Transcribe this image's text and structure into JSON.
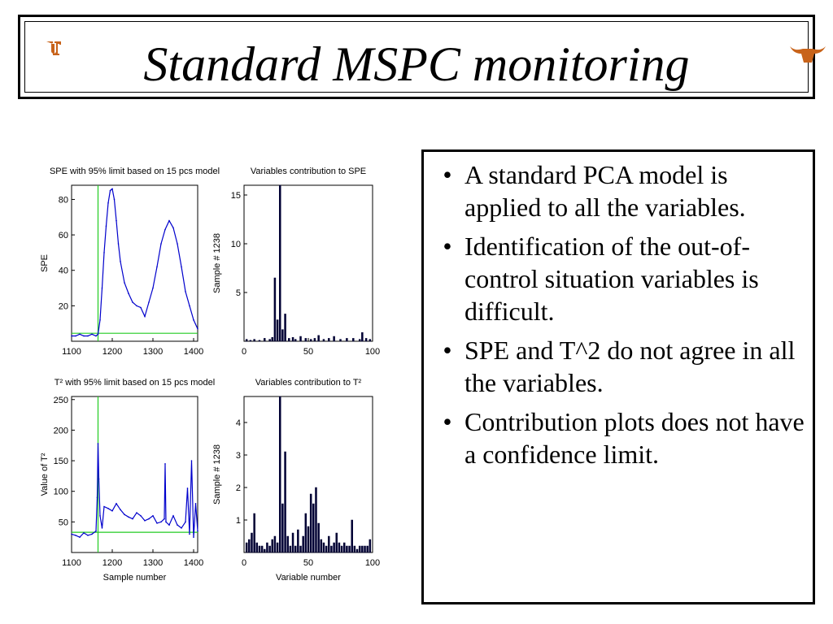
{
  "slide": {
    "title": "Standard MSPC monitoring",
    "bullets": [
      "A standard PCA model is applied to all the variables.",
      "Identification of the out-of-control situation variables is difficult.",
      "SPE and T^2 do not agree in all the variables.",
      "Contribution plots does not have a confidence limit."
    ],
    "bullet_glyph": "•",
    "logos": [
      "ut-logo-icon",
      "longhorn-icon"
    ]
  },
  "colors": {
    "line": "#0000cc",
    "limit": "#22cc22",
    "bar": "#000033",
    "text": "#000000"
  },
  "chart_data": [
    {
      "type": "line",
      "title": "SPE with 95% limit based on 15 pcs model",
      "xlabel": "",
      "ylabel": "SPE",
      "xlim": [
        1100,
        1410
      ],
      "ylim": [
        0,
        88
      ],
      "xticks": [
        1100,
        1200,
        1300,
        1400
      ],
      "yticks": [
        20,
        40,
        60,
        80
      ],
      "limit_y": 4.5,
      "event_x": 1165,
      "x": [
        1100,
        1110,
        1120,
        1130,
        1140,
        1150,
        1160,
        1165,
        1170,
        1175,
        1180,
        1185,
        1190,
        1195,
        1200,
        1205,
        1210,
        1215,
        1220,
        1230,
        1240,
        1250,
        1260,
        1270,
        1280,
        1290,
        1300,
        1310,
        1320,
        1330,
        1340,
        1350,
        1360,
        1370,
        1380,
        1390,
        1400,
        1410
      ],
      "y": [
        3,
        3,
        4,
        3,
        3,
        4,
        3,
        4,
        12,
        30,
        50,
        65,
        78,
        85,
        86,
        80,
        68,
        55,
        45,
        33,
        27,
        22,
        20,
        19,
        14,
        22,
        30,
        42,
        55,
        63,
        68,
        64,
        55,
        42,
        28,
        20,
        12,
        7
      ],
      "grid": false
    },
    {
      "type": "bar",
      "title": "Variables contribution to SPE",
      "xlabel": "",
      "ylabel": "Sample # 1238",
      "xlim": [
        0,
        100
      ],
      "ylim": [
        0,
        16
      ],
      "xticks": [
        0,
        50,
        100
      ],
      "yticks": [
        5,
        10,
        15
      ],
      "x": [
        2,
        5,
        8,
        12,
        16,
        20,
        22,
        24,
        26,
        28,
        30,
        32,
        35,
        38,
        40,
        44,
        48,
        52,
        55,
        58,
        62,
        66,
        70,
        75,
        80,
        85,
        90,
        92,
        95,
        98
      ],
      "values": [
        0.2,
        0.1,
        0.2,
        0.1,
        0.3,
        0.2,
        0.4,
        6.5,
        2.2,
        16.0,
        1.2,
        2.8,
        0.3,
        0.4,
        0.2,
        0.5,
        0.3,
        0.2,
        0.3,
        0.6,
        0.2,
        0.3,
        0.5,
        0.2,
        0.3,
        0.3,
        0.2,
        0.9,
        0.3,
        0.2
      ],
      "grid": false
    },
    {
      "type": "line",
      "title": "T² with 95% limit based on 15 pcs model",
      "xlabel": "Sample number",
      "ylabel": "Value of T²",
      "xlim": [
        1100,
        1410
      ],
      "ylim": [
        0,
        255
      ],
      "xticks": [
        1100,
        1200,
        1300,
        1400
      ],
      "yticks": [
        50,
        100,
        150,
        200,
        250
      ],
      "limit_y": 33,
      "event_x": 1165,
      "x": [
        1100,
        1110,
        1120,
        1130,
        1140,
        1150,
        1160,
        1163,
        1165,
        1167,
        1170,
        1175,
        1180,
        1190,
        1200,
        1210,
        1220,
        1230,
        1240,
        1250,
        1260,
        1270,
        1280,
        1290,
        1300,
        1310,
        1320,
        1328,
        1330,
        1332,
        1340,
        1350,
        1360,
        1370,
        1380,
        1385,
        1390,
        1395,
        1400,
        1405,
        1410
      ],
      "y": [
        30,
        28,
        25,
        32,
        28,
        30,
        35,
        90,
        178,
        120,
        60,
        40,
        75,
        72,
        68,
        80,
        70,
        62,
        58,
        55,
        65,
        60,
        52,
        55,
        60,
        48,
        50,
        55,
        145,
        50,
        45,
        60,
        45,
        40,
        50,
        105,
        30,
        150,
        25,
        80,
        35
      ],
      "grid": false
    },
    {
      "type": "bar",
      "title": "Variables contribution to T²",
      "xlabel": "Variable number",
      "ylabel": "Sample # 1238",
      "xlim": [
        0,
        100
      ],
      "ylim": [
        0,
        4.8
      ],
      "xticks": [
        0,
        50,
        100
      ],
      "yticks": [
        1,
        2,
        3,
        4
      ],
      "x": [
        2,
        4,
        6,
        8,
        10,
        12,
        14,
        16,
        18,
        20,
        22,
        24,
        26,
        28,
        30,
        32,
        34,
        36,
        38,
        40,
        42,
        44,
        46,
        48,
        50,
        52,
        54,
        56,
        58,
        60,
        62,
        64,
        66,
        68,
        70,
        72,
        74,
        76,
        78,
        80,
        82,
        84,
        86,
        88,
        90,
        92,
        94,
        96,
        98
      ],
      "values": [
        0.3,
        0.4,
        0.6,
        1.2,
        0.3,
        0.2,
        0.2,
        0.1,
        0.3,
        0.2,
        0.4,
        0.5,
        0.3,
        4.8,
        1.5,
        3.1,
        0.5,
        0.2,
        0.6,
        0.2,
        0.7,
        0.2,
        0.5,
        1.2,
        0.8,
        1.8,
        1.5,
        2.0,
        0.9,
        0.4,
        0.3,
        0.2,
        0.5,
        0.2,
        0.3,
        0.6,
        0.3,
        0.2,
        0.3,
        0.2,
        0.2,
        1.0,
        0.2,
        0.1,
        0.2,
        0.2,
        0.2,
        0.2,
        0.4
      ],
      "grid": false
    }
  ]
}
